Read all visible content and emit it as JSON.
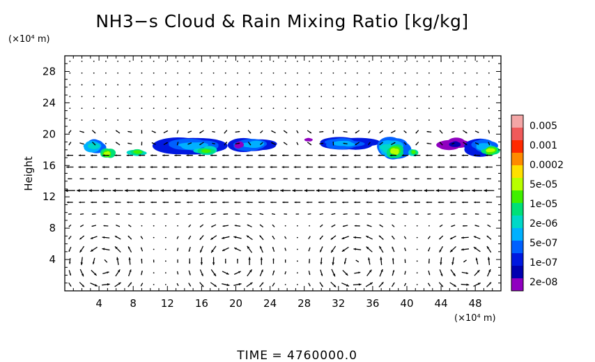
{
  "chart_data": {
    "type": "heatmap",
    "title": "NH3−s Cloud & Rain Mixing Ratio [kg/kg]",
    "ylabel": "Height",
    "x_unit": "(×10⁴ m)",
    "y_unit": "(×10⁴ m)",
    "xlim": [
      0,
      51
    ],
    "ylim": [
      0,
      30
    ],
    "x_ticks": [
      "4",
      "8",
      "12",
      "16",
      "20",
      "24",
      "28",
      "32",
      "36",
      "40",
      "44",
      "48"
    ],
    "y_ticks": [
      "4",
      "8",
      "12",
      "16",
      "20",
      "24",
      "28"
    ],
    "time_label": "TIME",
    "time_value": "4760000.0",
    "colorbar": {
      "labels": [
        "0.005",
        "0.001",
        "0.0002",
        "5e-05",
        "1e-05",
        "2e-06",
        "5e-07",
        "1e-07",
        "2e-08"
      ],
      "colors": [
        "#f4a6a6",
        "#f05a5a",
        "#ff2a00",
        "#ff8a00",
        "#ffe000",
        "#b8ff00",
        "#40f000",
        "#00e078",
        "#00d8c8",
        "#00b0ff",
        "#0060ff",
        "#0018e0",
        "#0000b0",
        "#9000c0"
      ]
    },
    "cloud_patches": [
      {
        "x": 3.5,
        "y": 18.5,
        "w": 3.0,
        "h": 2.0,
        "level": 8
      },
      {
        "x": 5.0,
        "y": 17.5,
        "w": 1.6,
        "h": 1.3,
        "level": 5
      },
      {
        "x": 8.5,
        "y": 17.7,
        "w": 2.5,
        "h": 1.0,
        "level": 6
      },
      {
        "x": 15.0,
        "y": 18.6,
        "w": 8.5,
        "h": 2.4,
        "level": 9
      },
      {
        "x": 16.5,
        "y": 17.8,
        "w": 2.5,
        "h": 1.2,
        "level": 6
      },
      {
        "x": 22.0,
        "y": 18.7,
        "w": 5.5,
        "h": 2.0,
        "level": 9
      },
      {
        "x": 20.5,
        "y": 18.6,
        "w": 1.2,
        "h": 1.0,
        "level": 13
      },
      {
        "x": 33.0,
        "y": 18.8,
        "w": 6.0,
        "h": 1.8,
        "level": 9
      },
      {
        "x": 38.0,
        "y": 18.2,
        "w": 4.0,
        "h": 3.0,
        "level": 8
      },
      {
        "x": 38.6,
        "y": 17.8,
        "w": 2.0,
        "h": 1.8,
        "level": 5
      },
      {
        "x": 40.8,
        "y": 17.7,
        "w": 1.2,
        "h": 1.0,
        "level": 6
      },
      {
        "x": 45.5,
        "y": 18.7,
        "w": 3.5,
        "h": 1.6,
        "level": 12
      },
      {
        "x": 49.0,
        "y": 18.4,
        "w": 4.5,
        "h": 2.6,
        "level": 9
      },
      {
        "x": 49.8,
        "y": 17.9,
        "w": 2.0,
        "h": 1.2,
        "level": 5
      },
      {
        "x": 28.5,
        "y": 19.3,
        "w": 0.8,
        "h": 0.4,
        "level": 13
      }
    ],
    "circulation_cells": [
      {
        "cx": 4.5,
        "cy": 3.5,
        "rx": 3.0,
        "ry": 3.2
      },
      {
        "cx": 19.5,
        "cy": 3.8,
        "rx": 3.5,
        "ry": 3.5
      },
      {
        "cx": 34.0,
        "cy": 3.5,
        "rx": 3.5,
        "ry": 3.5
      },
      {
        "cx": 47.0,
        "cy": 3.5,
        "rx": 3.0,
        "ry": 3.2
      }
    ],
    "upper_flow": [
      {
        "y": 16.5,
        "u": -0.9
      },
      {
        "y": 13.0,
        "u": -1.0
      },
      {
        "y": 11.0,
        "u": -0.4
      }
    ]
  }
}
